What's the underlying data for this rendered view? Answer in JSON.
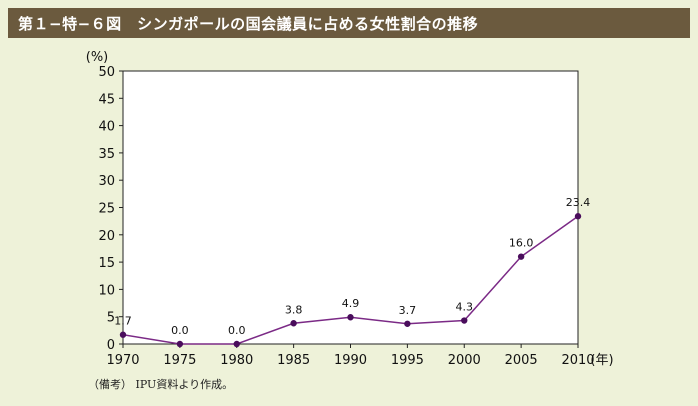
{
  "header": {
    "title": "第１−特−６図　シンガポールの国会議員に占める女性割合の推移"
  },
  "note": "（備考）  IPU資料より作成。",
  "colors": {
    "title_bg": "#6b5a3e",
    "page_bg": "#eef2d9",
    "plot_bg": "#ffffff",
    "line": "#7b2a86",
    "marker": "#4a0d5c"
  },
  "chart_data": {
    "type": "line",
    "title": "シンガポールの国会議員に占める女性割合の推移",
    "ylabel": "(%)",
    "xlabel": "(年)",
    "x": [
      1970,
      1975,
      1980,
      1985,
      1990,
      1995,
      2000,
      2005,
      2010
    ],
    "series": [
      {
        "values": [
          1.7,
          0.0,
          0.0,
          3.8,
          4.9,
          3.7,
          4.3,
          16.0,
          23.4
        ]
      }
    ],
    "data_labels": [
      "1.7",
      "0.0",
      "0.0",
      "3.8",
      "4.9",
      "3.7",
      "4.3",
      "16.0",
      "23.4"
    ],
    "ylim": [
      0,
      50
    ],
    "yticks": [
      "0",
      "5",
      "10",
      "15",
      "20",
      "25",
      "30",
      "35",
      "40",
      "45",
      "50"
    ],
    "xticks": [
      "1970",
      "1975",
      "1980",
      "1985",
      "1990",
      "1995",
      "2000",
      "2005",
      "2010"
    ],
    "grid": false,
    "legend": "none"
  }
}
